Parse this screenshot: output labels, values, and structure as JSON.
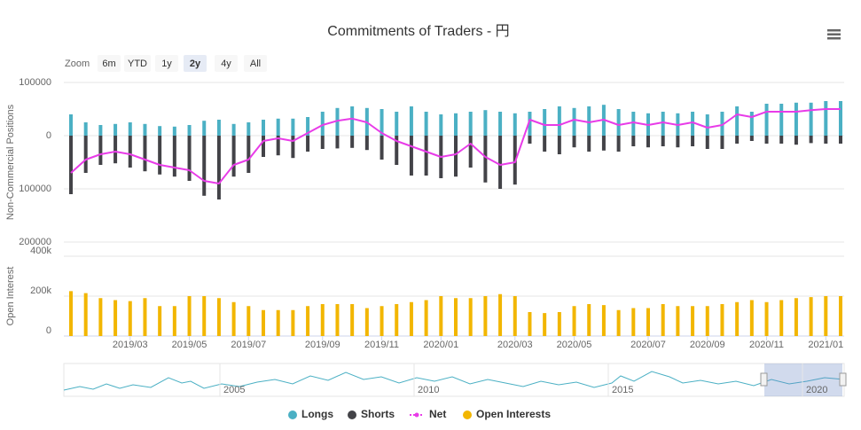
{
  "chart_data": {
    "type": "bar",
    "title": "Commitments of Traders - 円",
    "zoom": {
      "label": "Zoom",
      "buttons": [
        "6m",
        "YTD",
        "1y",
        "2y",
        "4y",
        "All"
      ],
      "selected": 3
    },
    "ylabel": "Non-Commercial Positions",
    "y2label": "Open Interest",
    "ylim": [
      -200000,
      100000
    ],
    "yticks": [
      100000,
      0,
      {
        "value": -100000,
        "label": "100000"
      },
      {
        "value": -200000,
        "label": "200000"
      }
    ],
    "y2lim": [
      0,
      400000
    ],
    "y2ticks": [
      0,
      {
        "value": 200000,
        "label": "200k"
      },
      {
        "value": 400000,
        "label": "400k"
      }
    ],
    "grid": true,
    "categories": [
      null,
      null,
      null,
      null,
      "2019/03",
      null,
      null,
      null,
      "2019/05",
      null,
      null,
      null,
      "2019/07",
      null,
      null,
      null,
      null,
      "2019/09",
      null,
      null,
      null,
      "2019/11",
      null,
      null,
      null,
      "2020/01",
      null,
      null,
      null,
      null,
      "2020/03",
      null,
      null,
      null,
      "2020/05",
      null,
      null,
      null,
      null,
      "2020/07",
      null,
      null,
      null,
      "2020/09",
      null,
      null,
      null,
      "2020/11",
      null,
      null,
      null,
      "2021/01",
      null
    ],
    "series": [
      {
        "name": "Longs",
        "type": "bar",
        "color": "#4bb0c4",
        "values": [
          40000,
          25000,
          20000,
          22000,
          25000,
          22000,
          18000,
          17000,
          20000,
          28000,
          30000,
          22000,
          25000,
          30000,
          32000,
          32000,
          35000,
          45000,
          52000,
          55000,
          52000,
          50000,
          45000,
          55000,
          45000,
          40000,
          42000,
          45000,
          48000,
          45000,
          42000,
          45000,
          50000,
          55000,
          52000,
          55000,
          58000,
          50000,
          45000,
          42000,
          45000,
          42000,
          45000,
          40000,
          45000,
          55000,
          45000,
          60000,
          60000,
          62000,
          62000,
          65000,
          65000
        ]
      },
      {
        "name": "Shorts",
        "type": "bar",
        "color": "#434348",
        "values": [
          -110000,
          -70000,
          -55000,
          -52000,
          -60000,
          -67000,
          -73000,
          -77000,
          -85000,
          -113000,
          -120000,
          -77000,
          -70000,
          -40000,
          -37000,
          -42000,
          -30000,
          -25000,
          -24000,
          -23000,
          -27000,
          -45000,
          -55000,
          -75000,
          -75000,
          -80000,
          -77000,
          -60000,
          -88000,
          -100000,
          -92000,
          -15000,
          -30000,
          -35000,
          -22000,
          -30000,
          -28000,
          -30000,
          -20000,
          -22000,
          -20000,
          -22000,
          -20000,
          -25000,
          -25000,
          -15000,
          -10000,
          -15000,
          -15000,
          -17000,
          -14000,
          -15000,
          -15000
        ]
      },
      {
        "name": "Net",
        "type": "line",
        "color": "#e83ce8",
        "values": [
          -70000,
          -45000,
          -35000,
          -30000,
          -35000,
          -45000,
          -55000,
          -60000,
          -65000,
          -85000,
          -90000,
          -55000,
          -45000,
          -10000,
          -5000,
          -10000,
          5000,
          20000,
          28000,
          32000,
          25000,
          5000,
          -10000,
          -20000,
          -30000,
          -40000,
          -35000,
          -15000,
          -40000,
          -55000,
          -50000,
          30000,
          20000,
          20000,
          30000,
          25000,
          30000,
          20000,
          25000,
          20000,
          25000,
          20000,
          25000,
          15000,
          20000,
          40000,
          35000,
          45000,
          45000,
          45000,
          48000,
          50000,
          50000
        ]
      },
      {
        "name": "Open Interests",
        "type": "bar",
        "axis": "y2",
        "color": "#f2b600",
        "values": [
          225000,
          215000,
          190000,
          180000,
          175000,
          190000,
          150000,
          150000,
          200000,
          200000,
          190000,
          170000,
          150000,
          130000,
          130000,
          130000,
          150000,
          160000,
          160000,
          160000,
          140000,
          150000,
          160000,
          170000,
          180000,
          200000,
          190000,
          190000,
          200000,
          210000,
          200000,
          120000,
          115000,
          120000,
          150000,
          160000,
          155000,
          130000,
          140000,
          140000,
          160000,
          150000,
          150000,
          150000,
          160000,
          170000,
          180000,
          170000,
          180000,
          190000,
          195000,
          200000,
          200000
        ]
      }
    ],
    "navigator": {
      "labels": [
        "2005",
        "2010",
        "2015",
        "2020"
      ]
    }
  }
}
